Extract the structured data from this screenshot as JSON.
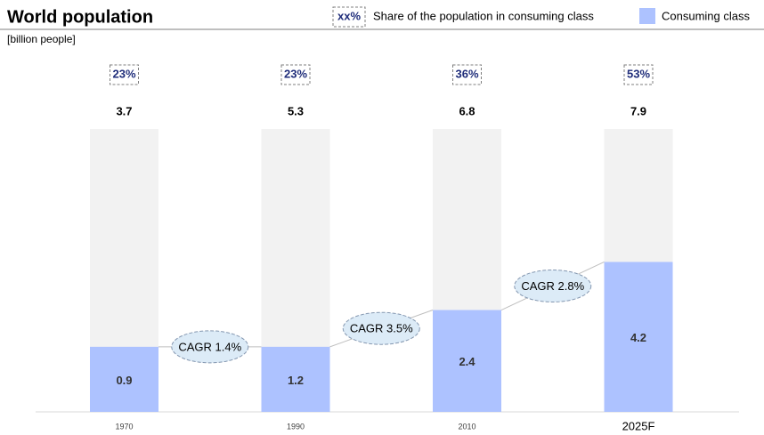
{
  "chart_data": {
    "type": "bar",
    "title": "World population",
    "subtitle": "[billion people]",
    "legend": {
      "share_marker": "xx%",
      "share_text": "Share of the population in consuming class"
    },
    "categories": [
      "1970",
      "1990",
      "2010",
      "2025F"
    ],
    "totals": [
      3.7,
      5.3,
      6.8,
      7.9
    ],
    "consuming_values": [
      0.9,
      1.2,
      2.4,
      4.2
    ],
    "series": [
      {
        "name": "Consuming class",
        "color": "#adc2ff",
        "values": [
          23,
          23,
          36,
          53
        ],
        "value_labels": [
          "23%",
          "23%",
          "36%",
          "53%"
        ]
      }
    ],
    "background_color": "#f2f2f2",
    "ylim": [
      0,
      100
    ],
    "annotations": [
      "CAGR 1.4%",
      "CAGR 3.5%",
      "CAGR 2.8%"
    ]
  }
}
